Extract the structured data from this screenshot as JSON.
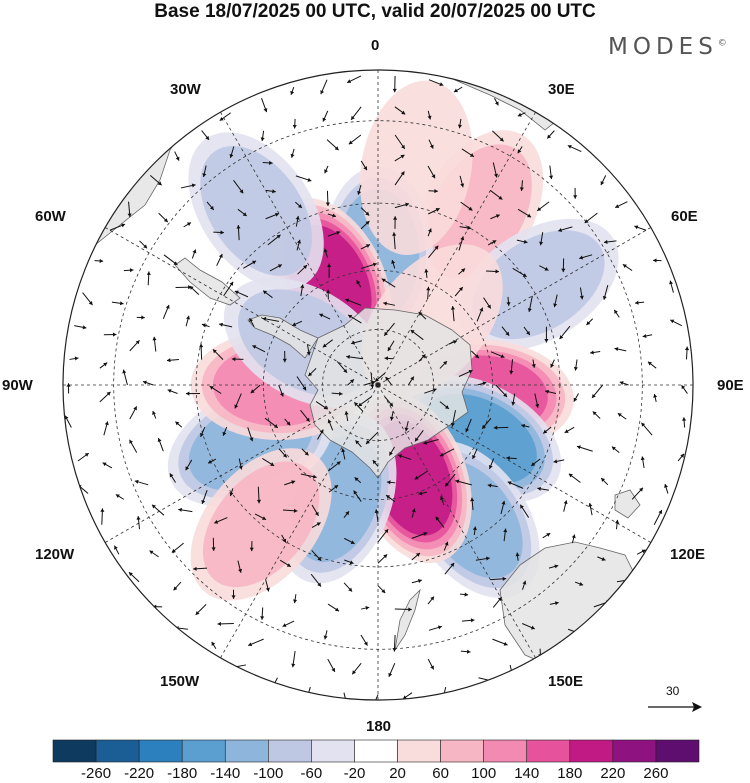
{
  "title": "Base 18/07/2025 00 UTC, valid 20/07/2025 00 UTC",
  "brand": "MODES",
  "brand_mark": "©",
  "longitude_labels": {
    "lon_0": "0",
    "lon_30e": "30E",
    "lon_60e": "60E",
    "lon_90e": "90E",
    "lon_120e": "120E",
    "lon_150e": "150E",
    "lon_180": "180",
    "lon_150w": "150W",
    "lon_120w": "120W",
    "lon_90w": "90W",
    "lon_60w": "60W",
    "lon_30w": "30W"
  },
  "reference_vector": "30",
  "colors": {
    "neg": [
      "#0e3a60",
      "#1a5e95",
      "#2b80bd",
      "#5a9fcf",
      "#8eb6dd",
      "#bec8e3",
      "#e2e2f0"
    ],
    "pos": [
      "#f9dcdc",
      "#f7b6c3",
      "#f38ab2",
      "#e6529c",
      "#c21a84",
      "#8e1380",
      "#5e0e6e"
    ],
    "zero": "#ffffff",
    "land": "#e4e4e4"
  },
  "colorbar_ticks": [
    "-260",
    "-220",
    "-180",
    "-140",
    "-100",
    "-60",
    "-20",
    "20",
    "60",
    "100",
    "140",
    "180",
    "220",
    "260"
  ],
  "anomaly_centers": [
    {
      "lon": 30,
      "lat": -25,
      "value": 70
    },
    {
      "lon": 58,
      "lat": -28,
      "value": -60
    },
    {
      "lon": 0,
      "lat": -45,
      "value": -120
    },
    {
      "lon": -25,
      "lat": -50,
      "value": 200
    },
    {
      "lon": 95,
      "lat": -52,
      "value": 170
    },
    {
      "lon": 118,
      "lat": -50,
      "value": -140
    },
    {
      "lon": 145,
      "lat": -35,
      "value": -120
    },
    {
      "lon": 160,
      "lat": -55,
      "value": 180
    },
    {
      "lon": -160,
      "lat": -48,
      "value": -130
    },
    {
      "lon": -115,
      "lat": -42,
      "value": -100
    },
    {
      "lon": -90,
      "lat": -55,
      "value": 100
    },
    {
      "lon": -60,
      "lat": -60,
      "value": -90
    },
    {
      "lon": -35,
      "lat": -22,
      "value": -60
    },
    {
      "lon": -140,
      "lat": -30,
      "value": 90
    },
    {
      "lon": 10,
      "lat": -20,
      "value": 50
    },
    {
      "lon": 40,
      "lat": -60,
      "value": 50
    }
  ]
}
